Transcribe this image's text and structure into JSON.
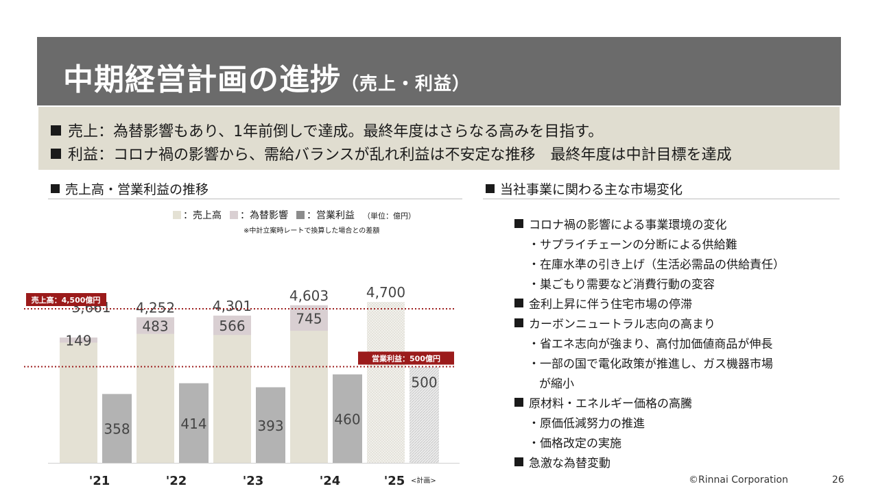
{
  "title": {
    "main": "中期経営計画の進捗",
    "sub": "（売上・利益）"
  },
  "summary": [
    "売上：為替影響もあり、1年前倒しで達成。最終年度はさらなる高みを目指す。",
    "利益：コロナ禍の影響から、需給バランスが乱れ利益は不安定な推移　最終年度は中計目標を達成"
  ],
  "left_section": {
    "title": "売上高・営業利益の推移"
  },
  "right_section": {
    "title": "当社事業に関わる主な市場変化"
  },
  "legend": {
    "sales": "：売上高",
    "fx": "：為替影響",
    "profit": "：営業利益",
    "unit": "（単位：億円）",
    "note": "※中計立案時レートで換算した場合との差額"
  },
  "colors": {
    "sales": "#e4e1d4",
    "fx": "#d9cfd2",
    "profit": "#b3b3b3",
    "target": "#9b1b1b",
    "title_bg": "#6b6b6b",
    "summary_bg": "#e0ddd0"
  },
  "chart_data": {
    "type": "bar",
    "categories": [
      "'21",
      "'22",
      "'23",
      "'24",
      "'25"
    ],
    "category_suffix": [
      "",
      "",
      "",
      "",
      "<計画>"
    ],
    "series": [
      {
        "name": "売上高",
        "values": [
          3661,
          4252,
          4301,
          4603,
          4700
        ]
      },
      {
        "name": "為替影響",
        "values": [
          149,
          483,
          566,
          745,
          null
        ]
      },
      {
        "name": "営業利益",
        "values": [
          358,
          414,
          393,
          460,
          500
        ]
      }
    ],
    "plan_year_index": 4,
    "targets": [
      {
        "label": "売上高：4,500億円",
        "series": "売上高",
        "value": 4500
      },
      {
        "label": "営業利益：500億円",
        "series": "営業利益",
        "value": 500
      }
    ],
    "sales_labels": [
      "3,661",
      "4,252",
      "4,301",
      "4,603",
      "4,700"
    ],
    "fx_labels": [
      "149",
      "483",
      "566",
      "745",
      ""
    ],
    "profit_labels": [
      "358",
      "414",
      "393",
      "460",
      "500"
    ]
  },
  "market_changes": [
    {
      "level": 0,
      "text": "コロナ禍の影響による事業環境の変化"
    },
    {
      "level": 1,
      "text": "・サプライチェーンの分断による供給難"
    },
    {
      "level": 1,
      "text": "・在庫水準の引き上げ（生活必需品の供給責任）"
    },
    {
      "level": 1,
      "text": "・巣ごもり需要など消費行動の変容"
    },
    {
      "level": 0,
      "text": "金利上昇に伴う住宅市場の停滞"
    },
    {
      "level": 0,
      "text": "カーボンニュートラル志向の高まり"
    },
    {
      "level": 1,
      "text": "・省エネ志向が強まり、高付加価値商品が伸長"
    },
    {
      "level": 1,
      "text": "・一部の国で電化政策が推進し、ガス機器市場"
    },
    {
      "level": 2,
      "text": "が縮小"
    },
    {
      "level": 0,
      "text": "原材料・エネルギー価格の高騰"
    },
    {
      "level": 1,
      "text": "・原価低減努力の推進"
    },
    {
      "level": 1,
      "text": "・価格改定の実施"
    },
    {
      "level": 0,
      "text": "急激な為替変動"
    }
  ],
  "footer": {
    "copyright": "©Rinnai Corporation",
    "page": "26"
  }
}
